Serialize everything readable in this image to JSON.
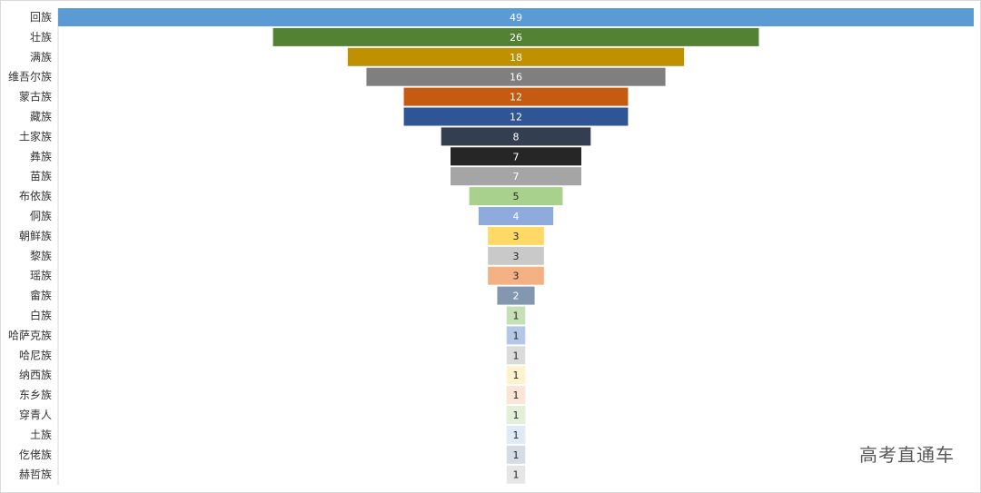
{
  "chart_data": {
    "type": "bar",
    "orientation": "horizontal-funnel",
    "title": "",
    "xlabel": "",
    "ylabel": "",
    "xlim": [
      0,
      49
    ],
    "grid": false,
    "legend": "none",
    "categories": [
      "回族",
      "壮族",
      "满族",
      "维吾尔族",
      "蒙古族",
      "藏族",
      "土家族",
      "彝族",
      "苗族",
      "布依族",
      "侗族",
      "朝鲜族",
      "黎族",
      "瑶族",
      "畲族",
      "白族",
      "哈萨克族",
      "哈尼族",
      "纳西族",
      "东乡族",
      "穿青人",
      "土族",
      "仡佬族",
      "赫哲族"
    ],
    "values": [
      49,
      26,
      18,
      16,
      12,
      12,
      8,
      7,
      7,
      5,
      4,
      3,
      3,
      3,
      2,
      1,
      1,
      1,
      1,
      1,
      1,
      1,
      1,
      1
    ],
    "colors": [
      "#5b9bd5",
      "#548235",
      "#bf9000",
      "#7f7f7f",
      "#c55a11",
      "#2f5597",
      "#333f50",
      "#262626",
      "#a5a5a5",
      "#a9d18e",
      "#8faadc",
      "#ffd966",
      "#c9c9c9",
      "#f4b183",
      "#8497b0",
      "#c5e0b4",
      "#b4c7e7",
      "#dbdbdb",
      "#fff2cc",
      "#fbe5d6",
      "#e2f0d9",
      "#deebf7",
      "#d6dce5",
      "#e7e6e6"
    ],
    "label_colors": [
      "#ffffff",
      "#ffffff",
      "#ffffff",
      "#ffffff",
      "#ffffff",
      "#ffffff",
      "#ffffff",
      "#ffffff",
      "#ffffff",
      "#262626",
      "#ffffff",
      "#262626",
      "#262626",
      "#262626",
      "#ffffff",
      "#262626",
      "#262626",
      "#262626",
      "#262626",
      "#262626",
      "#262626",
      "#262626",
      "#262626",
      "#262626"
    ]
  },
  "watermark": "高考直通车"
}
